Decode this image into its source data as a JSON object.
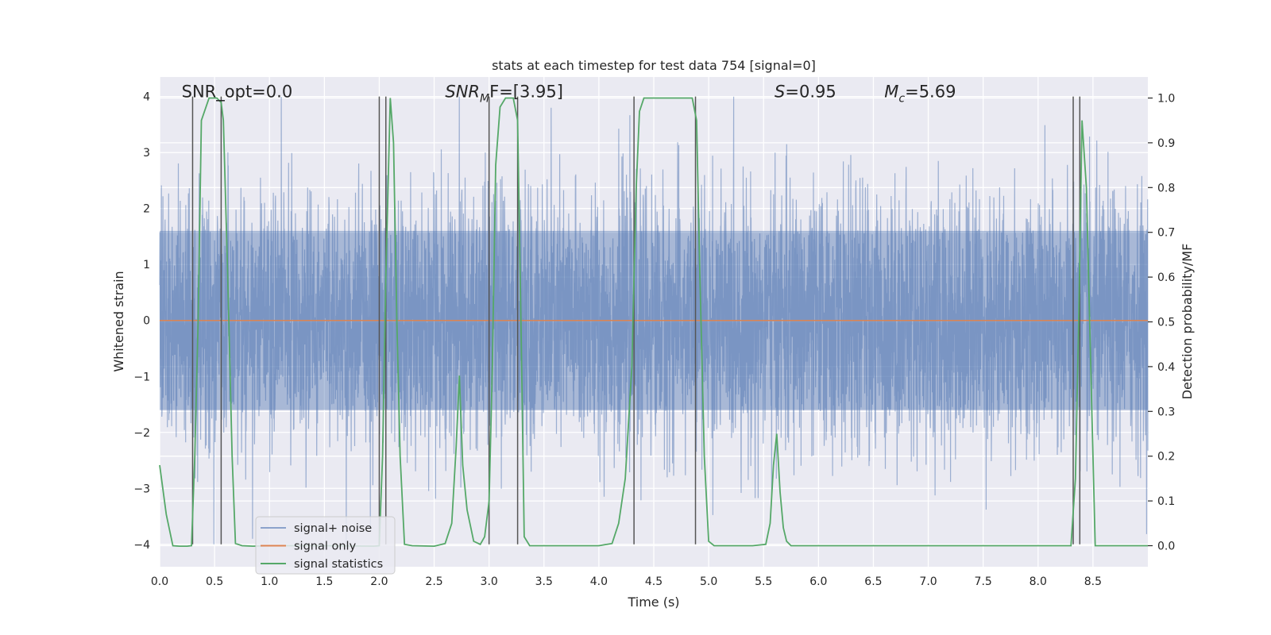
{
  "chart_data": {
    "type": "line",
    "title": "stats at each timestep for test data 754 [signal=0]",
    "xlabel": "Time (s)",
    "ylabel": "Whitened strain",
    "y2label": "Detection probability/MF",
    "xlim": [
      0.0,
      9.0
    ],
    "ylim": [
      -4.4,
      4.35
    ],
    "y2lim": [
      -0.047,
      1.047
    ],
    "x_ticks": [
      0.0,
      0.5,
      1.0,
      1.5,
      2.0,
      2.5,
      3.0,
      3.5,
      4.0,
      4.5,
      5.0,
      5.5,
      6.0,
      6.5,
      7.0,
      7.5,
      8.0,
      8.5
    ],
    "x_tick_labels": [
      "0.0",
      "0.5",
      "1.0",
      "1.5",
      "2.0",
      "2.5",
      "3.0",
      "3.5",
      "4.0",
      "4.5",
      "5.0",
      "5.5",
      "6.0",
      "6.5",
      "7.0",
      "7.5",
      "8.0",
      "8.5"
    ],
    "y_ticks": [
      -4,
      -3,
      -2,
      -1,
      0,
      1,
      2,
      3,
      4
    ],
    "y_tick_labels": [
      "−4",
      "−3",
      "−2",
      "−1",
      "0",
      "1",
      "2",
      "3",
      "4"
    ],
    "y2_ticks": [
      0.0,
      0.1,
      0.2,
      0.3,
      0.4,
      0.5,
      0.6,
      0.7,
      0.8,
      0.9,
      1.0
    ],
    "y2_tick_labels": [
      "0.0",
      "0.1",
      "0.2",
      "0.3",
      "0.4",
      "0.5",
      "0.6",
      "0.7",
      "0.8",
      "0.9",
      "1.0"
    ],
    "grid": true,
    "legend_position": "lower-left",
    "annotations": [
      {
        "x": 0.2,
        "y": 4.0,
        "text": "SNR_opt=0.0"
      },
      {
        "x": 2.6,
        "y": 4.0,
        "text": "SNR",
        "sub": "M",
        "suffix": "F=[3.95]",
        "italic": true
      },
      {
        "x": 5.6,
        "y": 4.0,
        "text": "S",
        "sub": "",
        "suffix": "=0.95",
        "italic": true
      },
      {
        "x": 6.6,
        "y": 4.0,
        "text": "M",
        "sub": "c",
        "suffix": "=5.69",
        "italic": true
      }
    ],
    "series": [
      {
        "name": "signal+ noise",
        "color": "#4c72b0",
        "kind": "noise",
        "sample_rate": 512,
        "core_amplitude": 1.6,
        "peak_amplitude": 4.0
      },
      {
        "name": "signal only",
        "color": "#dd8452",
        "x": [
          0.0,
          9.0
        ],
        "y": [
          0.0,
          0.0
        ]
      },
      {
        "name": "signal statistics",
        "color": "#55a868",
        "axis": "right",
        "x": [
          0.0,
          0.06,
          0.12,
          0.18,
          0.25,
          0.29,
          0.32,
          0.35,
          0.38,
          0.45,
          0.52,
          0.56,
          0.58,
          0.62,
          0.66,
          0.69,
          0.75,
          0.85,
          1.0,
          1.5,
          1.95,
          2.0,
          2.03,
          2.06,
          2.1,
          2.13,
          2.16,
          2.19,
          2.23,
          2.3,
          2.5,
          2.6,
          2.66,
          2.7,
          2.73,
          2.76,
          2.8,
          2.86,
          2.92,
          2.96,
          3.0,
          3.03,
          3.06,
          3.1,
          3.15,
          3.22,
          3.26,
          3.29,
          3.32,
          3.37,
          3.5,
          4.0,
          4.12,
          4.18,
          4.24,
          4.3,
          4.34,
          4.37,
          4.41,
          4.5,
          4.7,
          4.85,
          4.89,
          4.92,
          4.96,
          5.0,
          5.05,
          5.2,
          5.4,
          5.52,
          5.56,
          5.59,
          5.62,
          5.65,
          5.68,
          5.71,
          5.75,
          5.8,
          6.0,
          7.0,
          8.0,
          8.3,
          8.34,
          8.37,
          8.4,
          8.44,
          8.48,
          8.52,
          8.6,
          9.0
        ],
        "y": [
          0.18,
          0.07,
          0.0,
          -0.001,
          -0.001,
          0.0,
          0.2,
          0.5,
          0.95,
          1.0,
          1.0,
          0.99,
          0.95,
          0.6,
          0.2,
          0.005,
          0.0,
          -0.001,
          0.0,
          0.0,
          -0.001,
          0.0,
          0.2,
          0.6,
          1.0,
          0.9,
          0.5,
          0.2,
          0.003,
          0.0,
          -0.001,
          0.005,
          0.05,
          0.22,
          0.38,
          0.18,
          0.08,
          0.01,
          0.003,
          0.02,
          0.1,
          0.4,
          0.85,
          0.98,
          1.0,
          1.0,
          0.95,
          0.5,
          0.02,
          0.0,
          0.0,
          0.0,
          0.005,
          0.05,
          0.15,
          0.4,
          0.8,
          0.97,
          1.0,
          1.0,
          1.0,
          1.0,
          0.95,
          0.6,
          0.2,
          0.01,
          0.0,
          0.0,
          0.0,
          0.003,
          0.05,
          0.18,
          0.25,
          0.12,
          0.04,
          0.01,
          0.0,
          0.0,
          0.0,
          0.0,
          0.0,
          0.0,
          0.15,
          0.5,
          0.95,
          0.8,
          0.4,
          0.0,
          0.0,
          0.0
        ]
      }
    ],
    "vlines": [
      0.3,
      0.56,
      2.0,
      2.06,
      3.0,
      3.26,
      4.32,
      4.88,
      8.32,
      8.38
    ],
    "vline_color": "#555555",
    "styling": {
      "plot_bg": "#eaeaf2",
      "grid_color": "#ffffff",
      "legend_bg": "#eaeaf2",
      "legend_border": "#cccccc",
      "text_color": "#262626"
    }
  }
}
